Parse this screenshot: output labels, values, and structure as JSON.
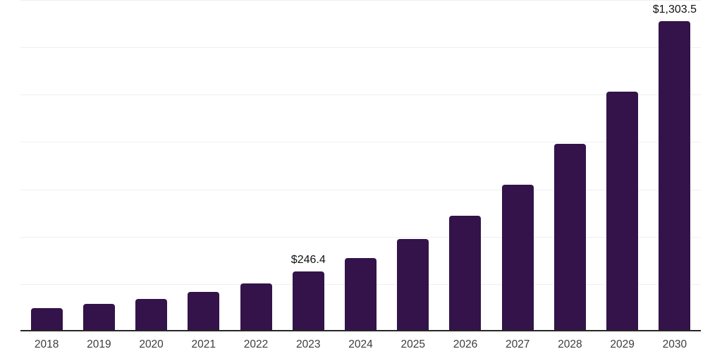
{
  "chart_data": {
    "type": "bar",
    "title": "",
    "xlabel": "",
    "ylabel": "",
    "categories": [
      "2018",
      "2019",
      "2020",
      "2021",
      "2022",
      "2023",
      "2024",
      "2025",
      "2026",
      "2027",
      "2028",
      "2029",
      "2030"
    ],
    "values": [
      93.2,
      109.4,
      130.0,
      159.8,
      195.5,
      246.4,
      304.3,
      383.7,
      484.0,
      614.8,
      785.2,
      1007.5,
      1303.5
    ],
    "value_labels": [
      "",
      "",
      "",
      "",
      "",
      "$246.4",
      "",
      "",
      "",
      "",
      "",
      "",
      "$1,303.5"
    ],
    "ylim": [
      0,
      1400
    ],
    "gridline_interval": 200,
    "grid": true,
    "legend": false,
    "colors": {
      "bar": "#331349",
      "axis_line": "#262626",
      "gridline": "#EFEFEF",
      "tick_label": "#3D3D3D",
      "value_label": "#111111",
      "background": "#FFFFFF"
    }
  }
}
